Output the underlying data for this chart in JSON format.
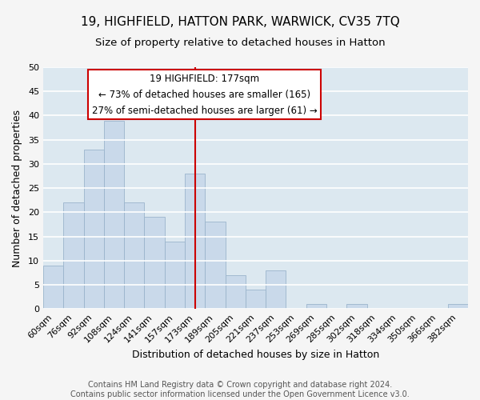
{
  "title": "19, HIGHFIELD, HATTON PARK, WARWICK, CV35 7TQ",
  "subtitle": "Size of property relative to detached houses in Hatton",
  "xlabel": "Distribution of detached houses by size in Hatton",
  "ylabel": "Number of detached properties",
  "bin_labels": [
    "60sqm",
    "76sqm",
    "92sqm",
    "108sqm",
    "124sqm",
    "141sqm",
    "157sqm",
    "173sqm",
    "189sqm",
    "205sqm",
    "221sqm",
    "237sqm",
    "253sqm",
    "269sqm",
    "285sqm",
    "302sqm",
    "318sqm",
    "334sqm",
    "350sqm",
    "366sqm",
    "382sqm"
  ],
  "bar_values": [
    9,
    22,
    33,
    39,
    22,
    19,
    14,
    28,
    18,
    7,
    4,
    8,
    0,
    1,
    0,
    1,
    0,
    0,
    0,
    0,
    1
  ],
  "bar_color": "#c9d9ea",
  "bar_edge_color": "#9ab4cc",
  "highlight_line_color": "#cc0000",
  "ylim": [
    0,
    50
  ],
  "yticks": [
    0,
    5,
    10,
    15,
    20,
    25,
    30,
    35,
    40,
    45,
    50
  ],
  "annotation_title": "19 HIGHFIELD: 177sqm",
  "annotation_line1": "← 73% of detached houses are smaller (165)",
  "annotation_line2": "27% of semi-detached houses are larger (61) →",
  "annotation_box_facecolor": "#ffffff",
  "annotation_box_edgecolor": "#cc0000",
  "footer1": "Contains HM Land Registry data © Crown copyright and database right 2024.",
  "footer2": "Contains public sector information licensed under the Open Government Licence v3.0.",
  "plot_bg_color": "#dce8f0",
  "fig_bg_color": "#f5f5f5",
  "grid_color": "#ffffff",
  "title_fontsize": 11,
  "subtitle_fontsize": 9.5,
  "axis_label_fontsize": 9,
  "tick_fontsize": 8,
  "annotation_fontsize": 8.5,
  "footer_fontsize": 7
}
